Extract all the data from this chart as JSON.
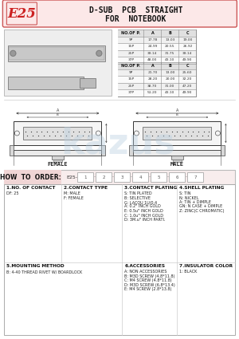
{
  "title_line1": "D-SUB  PCB  STRAIGHT",
  "title_line2": "FOR  NOTEBOOK",
  "logo_text": "E25",
  "bg_color": "#ffffff",
  "header_bg": "#fce8e8",
  "header_border": "#cc5555",
  "dim_table1_headers": [
    "NO.OF P.",
    "A",
    "B",
    "C"
  ],
  "dim_table1_rows": [
    [
      "9P",
      "17.78",
      "13.03",
      "19.00"
    ],
    [
      "15P",
      "24.99",
      "20.55",
      "26.92"
    ],
    [
      "25P",
      "39.14",
      "31.75",
      "39.14"
    ],
    [
      "37P",
      "48.00",
      "43.10",
      "49.90"
    ]
  ],
  "dim_table2_headers": [
    "NO.OF P.",
    "A",
    "B",
    "C"
  ],
  "dim_table2_rows": [
    [
      "9P",
      "21.70",
      "13.00",
      "25.60"
    ],
    [
      "15P",
      "28.20",
      "20.00",
      "32.20"
    ],
    [
      "25P",
      "38.70",
      "31.00",
      "47.20"
    ],
    [
      "37P",
      "51.20",
      "43.10",
      "49.90"
    ]
  ],
  "how_to_order_label": "HOW  TO  ORDER:",
  "order_code": "E25-",
  "order_boxes": [
    "1",
    "2",
    "3",
    "4",
    "5",
    "6",
    "7"
  ],
  "spec_sections": [
    {
      "title": "1.NO. OF CONTACT",
      "content": "DF: 25"
    },
    {
      "title": "2.CONTACT TYPE",
      "content": "M: MALE\nF: FEMALE"
    },
    {
      "title": "3.CONTACT PLATING",
      "content": "S: TIN PLATED\nB: SELECTIVE\nG: LACQU 1U/0.4\nA: 0.2\" INCH GOLD\nE: 0.5u\" INCH GOLD\nC: 1.0u\" INCH GOLD\nD: 3M.u\" INCH PARTI."
    },
    {
      "title": "4.SHELL PLATING",
      "content": "S: TIN\nN: NICKEL\nA: TIN + DIMPLE\nGN: N CASE + DIMPLE\nZ: ZINC(C CHROMATIC)"
    },
    {
      "title": "5.MOUNTING METHOD",
      "content": "B: 4-40 THREAD RIVET W/ BOARDLOCK"
    },
    {
      "title": "6.ACCESSORIES",
      "content": "A: NON ACCESSORIES\nB: M3D SCREW (4.8*11.8)\nC: M4 SCREW (4.8*11.8)\nD: M3D SCREW (6.8*13.4)\nE: M4 SCREW (2.8*13.8)"
    },
    {
      "title": "7.INSULATOR COLOR",
      "content": "1: BLACK"
    }
  ],
  "female_label": "FEMALE",
  "male_label": "MALE",
  "watermark_text": "kazus",
  "watermark_color": "#b8cfe0"
}
